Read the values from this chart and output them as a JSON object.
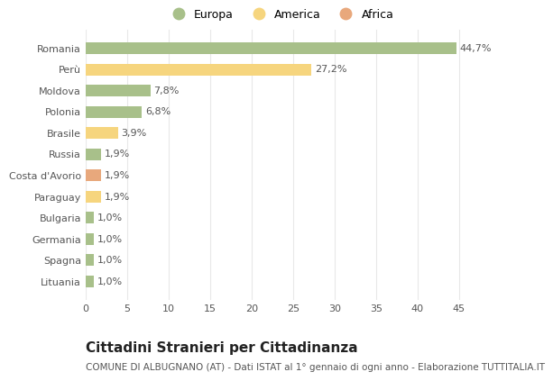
{
  "categories": [
    "Romania",
    "Perù",
    "Moldova",
    "Polonia",
    "Brasile",
    "Russia",
    "Costa d'Avorio",
    "Paraguay",
    "Bulgaria",
    "Germania",
    "Spagna",
    "Lituania"
  ],
  "values": [
    44.7,
    27.2,
    7.8,
    6.8,
    3.9,
    1.9,
    1.9,
    1.9,
    1.0,
    1.0,
    1.0,
    1.0
  ],
  "labels": [
    "44,7%",
    "27,2%",
    "7,8%",
    "6,8%",
    "3,9%",
    "1,9%",
    "1,9%",
    "1,9%",
    "1,0%",
    "1,0%",
    "1,0%",
    "1,0%"
  ],
  "colors": [
    "#a8c08a",
    "#f6d57e",
    "#a8c08a",
    "#a8c08a",
    "#f6d57e",
    "#a8c08a",
    "#e8a87c",
    "#f6d57e",
    "#a8c08a",
    "#a8c08a",
    "#a8c08a",
    "#a8c08a"
  ],
  "legend_labels": [
    "Europa",
    "America",
    "Africa"
  ],
  "legend_colors": [
    "#a8c08a",
    "#f6d57e",
    "#e8a87c"
  ],
  "title": "Cittadini Stranieri per Cittadinanza",
  "subtitle": "COMUNE DI ALBUGNANO (AT) - Dati ISTAT al 1° gennaio di ogni anno - Elaborazione TUTTITALIA.IT",
  "xlim": [
    0,
    47
  ],
  "xticks": [
    0,
    5,
    10,
    15,
    20,
    25,
    30,
    35,
    40,
    45
  ],
  "background_color": "#ffffff",
  "grid_color": "#e8e8e8",
  "bar_height": 0.55,
  "label_fontsize": 8,
  "title_fontsize": 11,
  "subtitle_fontsize": 7.5,
  "tick_fontsize": 8,
  "legend_fontsize": 9
}
